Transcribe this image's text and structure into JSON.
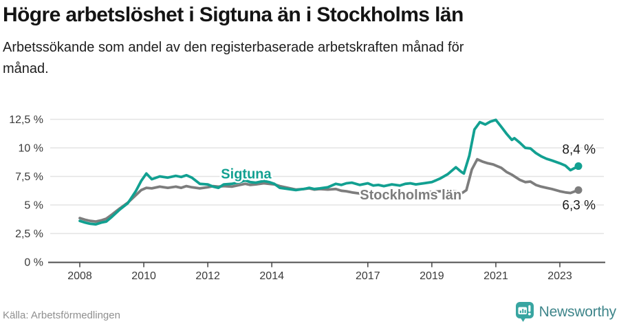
{
  "chart_data": {
    "type": "line",
    "title": "Högre arbetslöshet i Sigtuna än i Stockholms län",
    "subtitle_lines": [
      "Arbetssökande som andel av den registerbaserade arbetskraften månad för",
      "månad."
    ],
    "source": "Källa: Arbetsförmedlingen",
    "unit": "%",
    "grid": "horizontal",
    "legend_position": "inline-labels",
    "x_axis": {
      "range": [
        2007.0,
        2024.4
      ],
      "ticks": [
        {
          "year": 2008,
          "label": "2008"
        },
        {
          "year": 2010,
          "label": "2010"
        },
        {
          "year": 2012,
          "label": "2012"
        },
        {
          "year": 2014,
          "label": "2014"
        },
        {
          "year": 2017,
          "label": "2017"
        },
        {
          "year": 2019,
          "label": "2019"
        },
        {
          "year": 2021,
          "label": "2021"
        },
        {
          "year": 2023,
          "label": "2023"
        }
      ]
    },
    "y_axis": {
      "range": [
        0,
        13.1
      ],
      "ticks": [
        {
          "value": 0,
          "label": "0 %"
        },
        {
          "value": 2.5,
          "label": "2,5 %"
        },
        {
          "value": 5,
          "label": "5 %"
        },
        {
          "value": 7.5,
          "label": "7,5 %"
        },
        {
          "value": 10,
          "label": "10 %"
        },
        {
          "value": 12.5,
          "label": "12,5 %"
        }
      ]
    },
    "series": [
      {
        "name": "Stockholms län",
        "color": "#7d7d7d",
        "label_anchor": {
          "x": 2018.34,
          "y": 5.95
        },
        "end_label": "6,3 %",
        "points": [
          [
            2008.0,
            3.85
          ],
          [
            2008.17,
            3.7
          ],
          [
            2008.33,
            3.6
          ],
          [
            2008.5,
            3.55
          ],
          [
            2008.67,
            3.65
          ],
          [
            2008.83,
            3.8
          ],
          [
            2009.0,
            4.15
          ],
          [
            2009.25,
            4.7
          ],
          [
            2009.5,
            5.2
          ],
          [
            2009.75,
            5.85
          ],
          [
            2009.92,
            6.3
          ],
          [
            2010.08,
            6.5
          ],
          [
            2010.25,
            6.45
          ],
          [
            2010.5,
            6.6
          ],
          [
            2010.75,
            6.5
          ],
          [
            2011.0,
            6.6
          ],
          [
            2011.17,
            6.5
          ],
          [
            2011.33,
            6.65
          ],
          [
            2011.5,
            6.55
          ],
          [
            2011.75,
            6.45
          ],
          [
            2012.0,
            6.55
          ],
          [
            2012.17,
            6.65
          ],
          [
            2012.33,
            6.6
          ],
          [
            2012.5,
            6.65
          ],
          [
            2012.75,
            6.6
          ],
          [
            2013.0,
            6.75
          ],
          [
            2013.17,
            6.85
          ],
          [
            2013.33,
            6.75
          ],
          [
            2013.5,
            6.8
          ],
          [
            2013.75,
            6.9
          ],
          [
            2013.92,
            6.85
          ],
          [
            2014.08,
            6.8
          ],
          [
            2014.25,
            6.65
          ],
          [
            2014.5,
            6.5
          ],
          [
            2014.75,
            6.35
          ],
          [
            2015.0,
            6.4
          ],
          [
            2015.17,
            6.45
          ],
          [
            2015.33,
            6.35
          ],
          [
            2015.5,
            6.4
          ],
          [
            2015.75,
            6.35
          ],
          [
            2016.0,
            6.4
          ],
          [
            2016.17,
            6.25
          ],
          [
            2016.33,
            6.2
          ],
          [
            2016.5,
            6.1
          ],
          [
            2016.75,
            6.0
          ],
          [
            2017.0,
            6.1
          ],
          [
            2017.25,
            6.0
          ],
          [
            2017.5,
            5.9
          ],
          [
            2017.75,
            6.0
          ],
          [
            2018.0,
            5.95
          ],
          [
            2018.25,
            6.05
          ],
          [
            2018.5,
            6.0
          ],
          [
            2018.75,
            6.1
          ],
          [
            2019.0,
            6.15
          ],
          [
            2019.25,
            6.2
          ],
          [
            2019.5,
            6.25
          ],
          [
            2019.75,
            6.2
          ],
          [
            2019.92,
            6.0
          ],
          [
            2020.08,
            6.3
          ],
          [
            2020.25,
            8.1
          ],
          [
            2020.42,
            9.0
          ],
          [
            2020.58,
            8.8
          ],
          [
            2020.75,
            8.65
          ],
          [
            2020.92,
            8.55
          ],
          [
            2021.0,
            8.45
          ],
          [
            2021.17,
            8.25
          ],
          [
            2021.33,
            7.9
          ],
          [
            2021.5,
            7.65
          ],
          [
            2021.75,
            7.2
          ],
          [
            2021.92,
            7.0
          ],
          [
            2022.08,
            7.05
          ],
          [
            2022.25,
            6.75
          ],
          [
            2022.42,
            6.6
          ],
          [
            2022.58,
            6.5
          ],
          [
            2022.75,
            6.4
          ],
          [
            2023.0,
            6.2
          ],
          [
            2023.17,
            6.1
          ],
          [
            2023.33,
            6.05
          ],
          [
            2023.58,
            6.3
          ]
        ]
      },
      {
        "name": "Sigtuna",
        "color": "#12a091",
        "label_anchor": {
          "x": 2013.2,
          "y": 7.8
        },
        "end_label": "8,4 %",
        "points": [
          [
            2008.0,
            3.6
          ],
          [
            2008.17,
            3.45
          ],
          [
            2008.33,
            3.35
          ],
          [
            2008.5,
            3.3
          ],
          [
            2008.67,
            3.45
          ],
          [
            2008.83,
            3.55
          ],
          [
            2009.0,
            3.95
          ],
          [
            2009.25,
            4.6
          ],
          [
            2009.5,
            5.15
          ],
          [
            2009.75,
            6.2
          ],
          [
            2009.92,
            7.1
          ],
          [
            2010.08,
            7.75
          ],
          [
            2010.25,
            7.25
          ],
          [
            2010.5,
            7.5
          ],
          [
            2010.75,
            7.4
          ],
          [
            2011.0,
            7.55
          ],
          [
            2011.17,
            7.45
          ],
          [
            2011.33,
            7.6
          ],
          [
            2011.5,
            7.4
          ],
          [
            2011.75,
            6.85
          ],
          [
            2012.0,
            6.8
          ],
          [
            2012.17,
            6.6
          ],
          [
            2012.33,
            6.5
          ],
          [
            2012.5,
            6.8
          ],
          [
            2012.75,
            6.85
          ],
          [
            2013.0,
            7.0
          ],
          [
            2013.17,
            7.15
          ],
          [
            2013.33,
            7.0
          ],
          [
            2013.5,
            6.95
          ],
          [
            2013.75,
            7.1
          ],
          [
            2013.92,
            7.0
          ],
          [
            2014.08,
            6.85
          ],
          [
            2014.25,
            6.5
          ],
          [
            2014.5,
            6.4
          ],
          [
            2014.75,
            6.3
          ],
          [
            2015.0,
            6.4
          ],
          [
            2015.17,
            6.5
          ],
          [
            2015.33,
            6.4
          ],
          [
            2015.5,
            6.45
          ],
          [
            2015.75,
            6.55
          ],
          [
            2016.0,
            6.85
          ],
          [
            2016.17,
            6.75
          ],
          [
            2016.33,
            6.9
          ],
          [
            2016.5,
            6.95
          ],
          [
            2016.75,
            6.75
          ],
          [
            2017.0,
            6.9
          ],
          [
            2017.17,
            6.7
          ],
          [
            2017.33,
            6.75
          ],
          [
            2017.5,
            6.65
          ],
          [
            2017.75,
            6.8
          ],
          [
            2018.0,
            6.7
          ],
          [
            2018.17,
            6.85
          ],
          [
            2018.33,
            6.9
          ],
          [
            2018.5,
            6.8
          ],
          [
            2018.75,
            6.9
          ],
          [
            2019.0,
            7.0
          ],
          [
            2019.25,
            7.3
          ],
          [
            2019.5,
            7.7
          ],
          [
            2019.75,
            8.3
          ],
          [
            2019.92,
            7.9
          ],
          [
            2020.0,
            7.75
          ],
          [
            2020.17,
            9.3
          ],
          [
            2020.33,
            11.6
          ],
          [
            2020.5,
            12.25
          ],
          [
            2020.67,
            12.05
          ],
          [
            2020.83,
            12.3
          ],
          [
            2021.0,
            12.45
          ],
          [
            2021.17,
            11.85
          ],
          [
            2021.33,
            11.25
          ],
          [
            2021.5,
            10.7
          ],
          [
            2021.58,
            10.85
          ],
          [
            2021.75,
            10.45
          ],
          [
            2021.92,
            10.0
          ],
          [
            2022.08,
            9.95
          ],
          [
            2022.25,
            9.55
          ],
          [
            2022.42,
            9.25
          ],
          [
            2022.58,
            9.05
          ],
          [
            2022.75,
            8.9
          ],
          [
            2023.0,
            8.65
          ],
          [
            2023.17,
            8.45
          ],
          [
            2023.33,
            8.05
          ],
          [
            2023.58,
            8.4
          ]
        ]
      }
    ],
    "colors": {
      "grid": "#e3e3e3",
      "axis": "#4d4d4d",
      "tick_label": "#3a3a3a",
      "end_label_text": "#1b1b1b"
    }
  },
  "footer": {
    "brand": "Newsworthy",
    "brand_icon": "newsworthy-speech-bubble-bar-chart",
    "brand_text_color": "#3e858a",
    "brand_icon_color": "#38a5a1"
  }
}
